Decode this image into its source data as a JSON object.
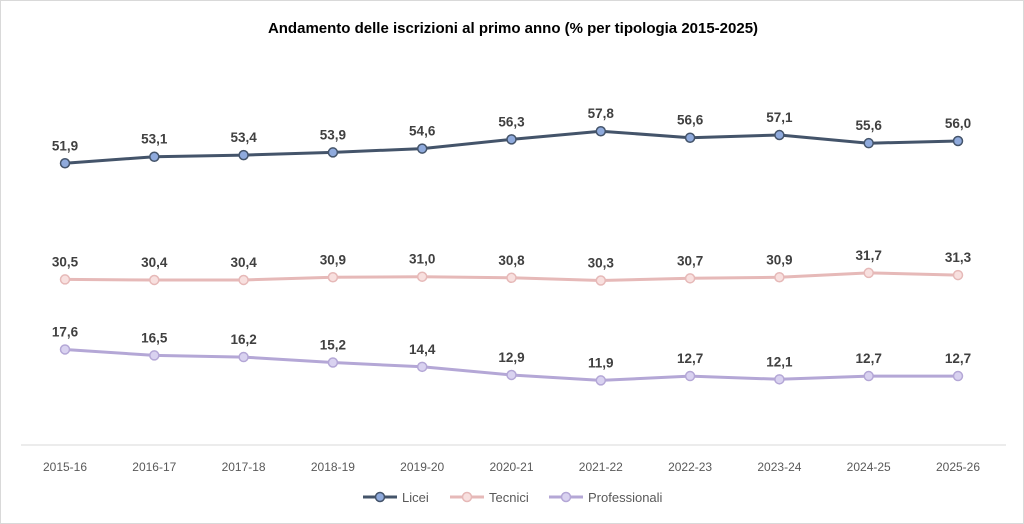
{
  "chart_data": {
    "type": "line",
    "title": "Andamento delle iscrizioni al primo anno (% per tipologia 2015-2025)",
    "xlabel": "",
    "ylabel": "",
    "categories": [
      "2015-16",
      "2016-17",
      "2017-18",
      "2018-19",
      "2019-20",
      "2020-21",
      "2021-22",
      "2022-23",
      "2023-24",
      "2024-25",
      "2025-26"
    ],
    "series": [
      {
        "name": "Licei",
        "color": "#44546a",
        "marker_fill": "#8faadc",
        "values": [
          51.9,
          53.1,
          53.4,
          53.9,
          54.6,
          56.3,
          57.8,
          56.6,
          57.1,
          55.6,
          56.0
        ],
        "labels": [
          "51,9",
          "53,1",
          "53,4",
          "53,9",
          "54,6",
          "56,3",
          "57,8",
          "56,6",
          "57,1",
          "55,6",
          "56,0"
        ]
      },
      {
        "name": "Tecnici",
        "color": "#e6b9b8",
        "marker_fill": "#f8e0df",
        "values": [
          30.5,
          30.4,
          30.4,
          30.9,
          31.0,
          30.8,
          30.3,
          30.7,
          30.9,
          31.7,
          31.3
        ],
        "labels": [
          "30,5",
          "30,4",
          "30,4",
          "30,9",
          "31,0",
          "30,8",
          "30,3",
          "30,7",
          "30,9",
          "31,7",
          "31,3"
        ]
      },
      {
        "name": "Professionali",
        "color": "#b4a7d6",
        "marker_fill": "#d9d2f0",
        "values": [
          17.6,
          16.5,
          16.2,
          15.2,
          14.4,
          12.9,
          11.9,
          12.7,
          12.1,
          12.7,
          12.7
        ],
        "labels": [
          "17,6",
          "16,5",
          "16,2",
          "15,2",
          "14,4",
          "12,9",
          "11,9",
          "12,7",
          "12,1",
          "12,7",
          "12,7"
        ]
      }
    ],
    "ylim": [
      0,
      70
    ],
    "grid": false,
    "legend": "bottom"
  }
}
